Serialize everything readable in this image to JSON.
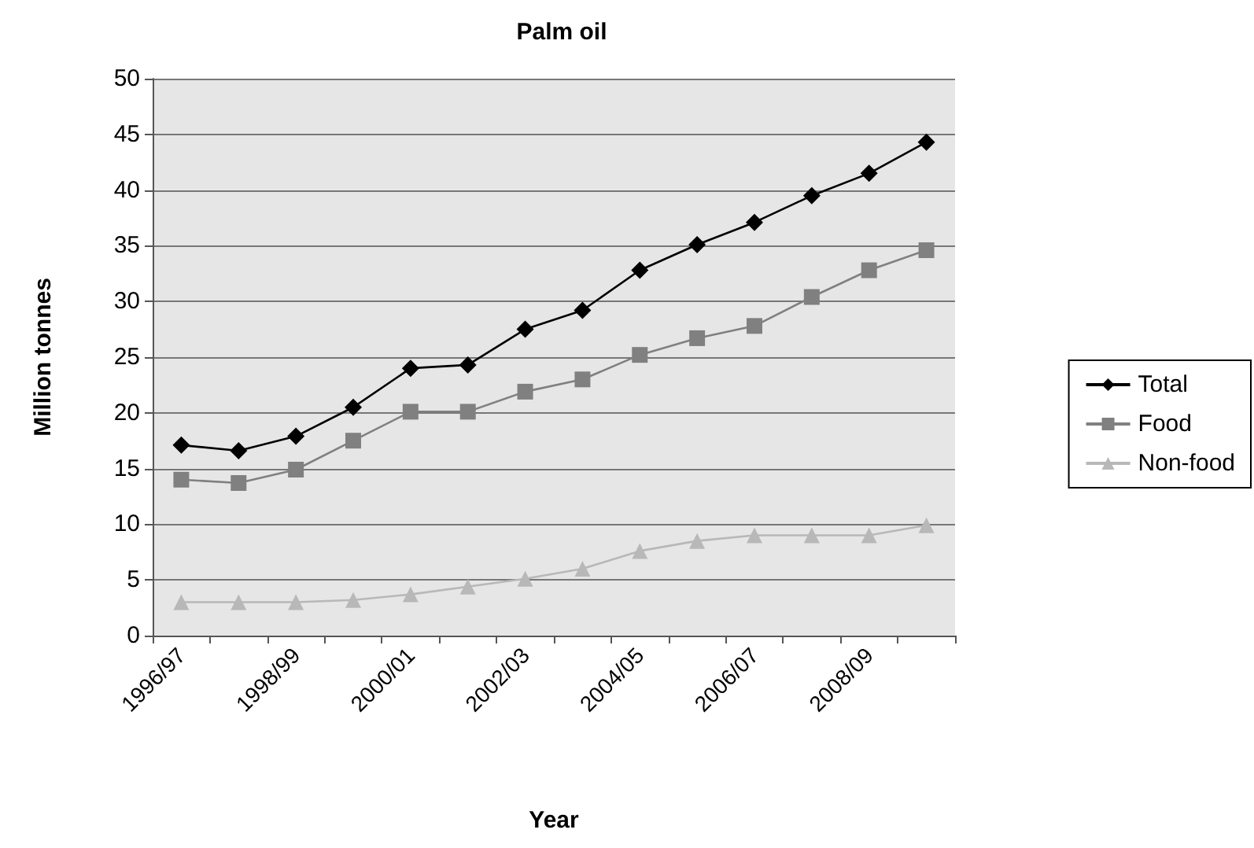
{
  "chart_data": {
    "type": "line",
    "title": "Palm oil",
    "xlabel": "Year",
    "ylabel": "Million tonnes",
    "categories": [
      "1996/97",
      null,
      "1998/99",
      null,
      "2000/01",
      null,
      "2002/03",
      null,
      "2004/05",
      null,
      "2006/07",
      null,
      "2008/09",
      null
    ],
    "series": [
      {
        "name": "Total",
        "color": "#000000",
        "marker": "diamond",
        "values": [
          17.1,
          16.6,
          17.9,
          20.5,
          24.0,
          24.3,
          27.5,
          29.2,
          32.8,
          35.1,
          37.1,
          39.5,
          41.5,
          44.3
        ]
      },
      {
        "name": "Food",
        "color": "#808080",
        "marker": "square",
        "values": [
          14.0,
          13.7,
          14.9,
          17.5,
          20.1,
          20.1,
          21.9,
          23.0,
          25.2,
          26.7,
          27.8,
          30.4,
          32.8,
          34.6
        ]
      },
      {
        "name": "Non-food",
        "color": "#b8b8b8",
        "marker": "triangle",
        "values": [
          3.0,
          3.0,
          3.0,
          3.2,
          3.7,
          4.4,
          5.1,
          6.0,
          7.6,
          8.5,
          9.0,
          9.0,
          9.0,
          9.9
        ]
      }
    ],
    "ylim": [
      0,
      50
    ],
    "yticks": [
      0,
      5,
      10,
      15,
      20,
      25,
      30,
      35,
      40,
      45,
      50
    ],
    "grid": "y",
    "legend": "right",
    "line_style": "solid"
  }
}
